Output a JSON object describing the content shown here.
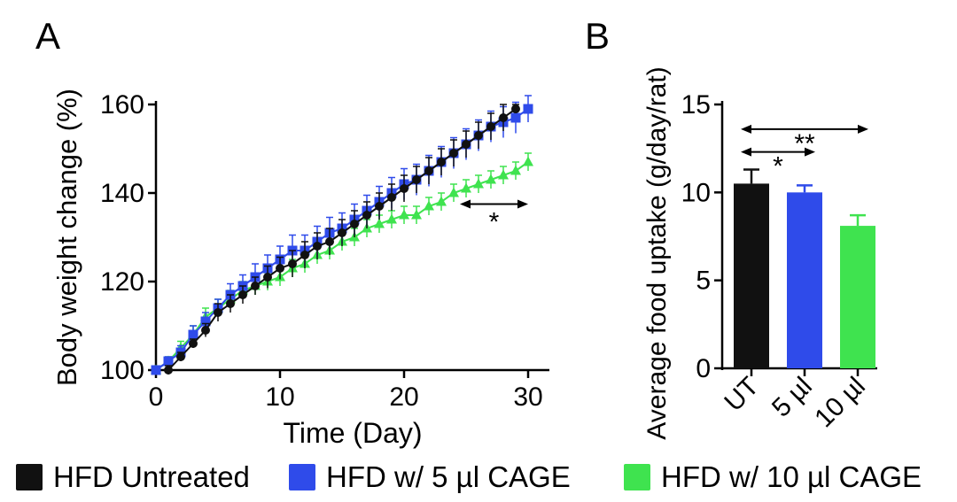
{
  "panel_a_letter": "A",
  "panel_b_letter": "B",
  "colors": {
    "untreated": "#111111",
    "cage5": "#2f4bea",
    "cage10": "#3fe34f"
  },
  "legend": [
    {
      "label": "HFD Untreated",
      "color": "#111111"
    },
    {
      "label": "HFD w/ 5 µl CAGE",
      "color": "#2f4bea"
    },
    {
      "label": "HFD w/ 10 µl CAGE",
      "color": "#3fe34f"
    }
  ],
  "chart_data": [
    {
      "type": "line",
      "panel": "A",
      "title": "",
      "xlabel": "Time (Day)",
      "ylabel": "Body weight change (%)",
      "xlim": [
        0,
        30
      ],
      "ylim": [
        100,
        160
      ],
      "xticks": [
        0,
        10,
        20,
        30
      ],
      "yticks": [
        100,
        120,
        140,
        160
      ],
      "x_start": 0,
      "x_step": 1,
      "series": [
        {
          "name": "HFD Untreated",
          "color": "#111111",
          "marker": "circle",
          "x_start": 1,
          "values": [
            100,
            103,
            106,
            109,
            113,
            115,
            117,
            119,
            121,
            123,
            124,
            126,
            128,
            129,
            131,
            133,
            135,
            137,
            139,
            141,
            143,
            145,
            147,
            149,
            151,
            153,
            155,
            157,
            159
          ],
          "error": [
            1,
            1,
            1,
            1.5,
            2,
            2,
            2,
            2,
            2.5,
            2.5,
            3,
            3,
            3,
            3,
            3,
            3,
            3,
            3,
            3,
            3,
            3,
            3,
            3,
            3,
            3,
            3,
            3,
            3,
            1
          ]
        },
        {
          "name": "HFD w/ 5 µl CAGE",
          "color": "#2f4bea",
          "marker": "square",
          "values": [
            100,
            102,
            104,
            108,
            111,
            114,
            117,
            119,
            121,
            123,
            125,
            127,
            127,
            129,
            131,
            132,
            134,
            136,
            138,
            140,
            142,
            143,
            145,
            147,
            149,
            151,
            153,
            155,
            156,
            157,
            159
          ],
          "error": [
            0.5,
            1,
            1.5,
            2,
            2,
            2,
            2.5,
            2.5,
            3,
            3,
            3,
            3.5,
            3.5,
            3.5,
            3.5,
            3.5,
            3.5,
            3.5,
            3.5,
            3.5,
            3.5,
            3.5,
            3.5,
            3.5,
            3.5,
            3.5,
            3.5,
            3.5,
            3.5,
            3.5,
            3
          ]
        },
        {
          "name": "HFD w/ 10 µl CAGE",
          "color": "#3fe34f",
          "marker": "triangle",
          "values": [
            100,
            102,
            105,
            108,
            112,
            114,
            116,
            118,
            119,
            120,
            121,
            123,
            124,
            126,
            127,
            129,
            130,
            132,
            133,
            134,
            135,
            135,
            137,
            138,
            140,
            141,
            142,
            143,
            144,
            145,
            147
          ],
          "error": [
            0.5,
            1,
            1.5,
            2,
            2,
            2,
            2,
            2,
            2,
            2,
            2,
            2,
            2,
            2,
            2,
            2,
            2,
            2,
            2,
            2,
            2,
            2,
            2,
            2,
            2,
            2,
            2,
            2,
            2,
            2,
            2
          ]
        }
      ],
      "annotations": [
        {
          "text": "*",
          "x_from": 24.5,
          "x_to": 30,
          "y": 137.5
        }
      ]
    },
    {
      "type": "bar",
      "panel": "B",
      "title": "",
      "xlabel": "",
      "ylabel": "Average food uptake (g/day/rat)",
      "categories": [
        "UT",
        "5 µl",
        "10 µl"
      ],
      "values": [
        10.5,
        10.0,
        8.1
      ],
      "errors": [
        0.8,
        0.4,
        0.6
      ],
      "colors": [
        "#111111",
        "#2f4bea",
        "#3fe34f"
      ],
      "ylim": [
        0,
        15
      ],
      "yticks": [
        0,
        5,
        10,
        15
      ],
      "annotations": [
        {
          "text": "**",
          "from": "UT",
          "to": "10 µl",
          "y": 13.6
        },
        {
          "text": "*",
          "from": "UT",
          "to": "5 µl",
          "y": 12.3
        }
      ]
    }
  ]
}
